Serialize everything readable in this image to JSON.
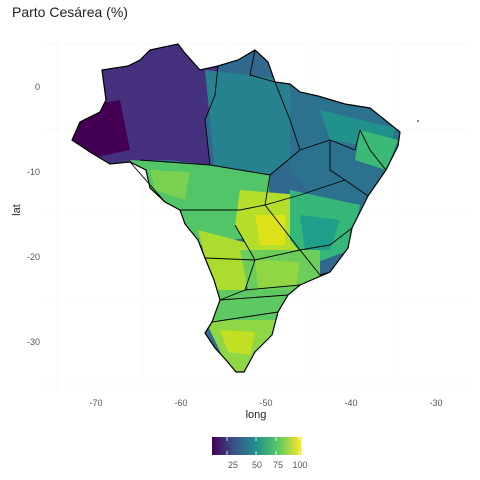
{
  "title": "Parto Cesárea (%)",
  "x_axis": {
    "label": "long",
    "ticks": [
      "-70",
      "-60",
      "-50",
      "-40",
      "-30"
    ],
    "values": [
      -70,
      -60,
      -50,
      -40,
      -30
    ],
    "range": [
      -75,
      -28
    ]
  },
  "y_axis": {
    "label": "lat",
    "ticks": [
      "0",
      "-10",
      "-20",
      "-30"
    ],
    "values": [
      0,
      -10,
      -20,
      -30
    ],
    "range": [
      -35,
      6
    ]
  },
  "legend": {
    "position": "bottom",
    "ticks": [
      "25",
      "50",
      "75",
      "100"
    ],
    "values": [
      25,
      50,
      75,
      100
    ],
    "range": [
      10,
      100
    ]
  },
  "colors": {
    "low": "#440154",
    "mid": "#21918c",
    "high": "#fde725",
    "grid": "#ebebeb",
    "border": "#000000"
  }
}
